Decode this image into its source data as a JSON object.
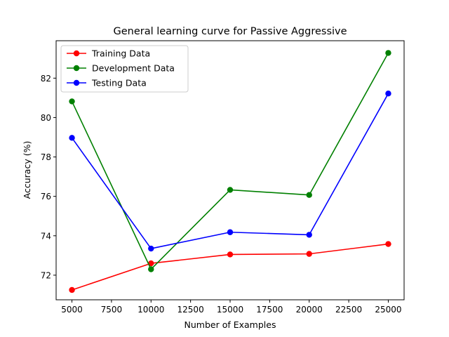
{
  "chart_data": {
    "type": "line",
    "title": "General learning curve for Passive Aggressive",
    "xlabel": "Number of Examples",
    "ylabel": "Accuracy (%)",
    "x": [
      5000,
      10000,
      15000,
      20000,
      25000
    ],
    "xlim": [
      4000,
      26000
    ],
    "ylim": [
      70.75,
      83.9
    ],
    "xticks": [
      5000,
      7500,
      10000,
      12500,
      15000,
      17500,
      20000,
      22500,
      25000
    ],
    "yticks": [
      72,
      74,
      76,
      78,
      80,
      82
    ],
    "grid": false,
    "legend_position": "top-left",
    "series": [
      {
        "name": "Training Data",
        "color": "#ff0000",
        "values": [
          71.25,
          72.6,
          73.05,
          73.08,
          73.58
        ]
      },
      {
        "name": "Development Data",
        "color": "#008000",
        "values": [
          80.82,
          72.3,
          76.33,
          76.07,
          83.28
        ]
      },
      {
        "name": "Testing Data",
        "color": "#0000ff",
        "values": [
          78.97,
          73.35,
          74.18,
          74.05,
          81.22
        ]
      }
    ]
  }
}
